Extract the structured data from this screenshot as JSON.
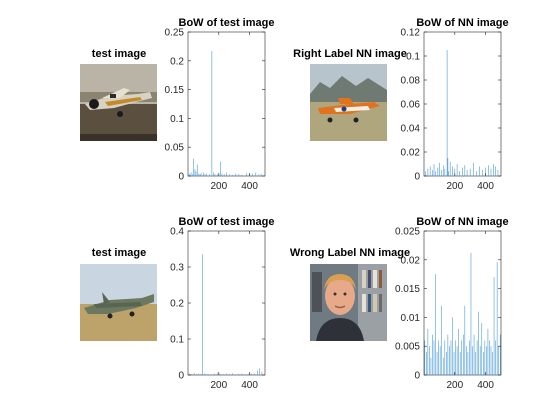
{
  "figure": {
    "rows": [
      {
        "test_image_title": "test image",
        "nn_image_title": "Right Label NN image",
        "nn_image_desc": "orange and white propeller trainer aircraft on airfield with mountains behind"
      },
      {
        "test_image_title": "test image",
        "nn_image_title": "Wrong Label NN image",
        "nn_image_desc": "portrait of a man in front of bookshelves"
      }
    ]
  },
  "chart_data": [
    {
      "type": "bar",
      "title": "BoW of test image",
      "xlabel": "",
      "ylabel": "",
      "xlim": [
        0,
        500
      ],
      "ylim": [
        0,
        0.25
      ],
      "yticks": [
        "0",
        "0.05",
        "0.1",
        "0.15",
        "0.2",
        "0.25"
      ],
      "xticks": [
        "200",
        "400"
      ],
      "grid": false,
      "x": [
        8,
        20,
        28,
        35,
        45,
        52,
        60,
        70,
        78,
        85,
        100,
        110,
        120,
        140,
        155,
        165,
        175,
        190,
        200,
        210,
        220,
        235,
        250,
        270,
        290,
        310,
        330,
        350,
        380,
        400,
        420,
        440,
        460,
        475
      ],
      "values": [
        0.004,
        0.006,
        0.003,
        0.03,
        0.012,
        0.008,
        0.02,
        0.004,
        0.003,
        0.005,
        0.006,
        0.003,
        0.004,
        0.003,
        0.217,
        0.006,
        0.004,
        0.003,
        0.005,
        0.025,
        0.004,
        0.003,
        0.006,
        0.003,
        0.002,
        0.004,
        0.003,
        0.002,
        0.005,
        0.003,
        0.004,
        0.006,
        0.003,
        0.004
      ]
    },
    {
      "type": "bar",
      "title": "BoW of NN image",
      "xlabel": "",
      "ylabel": "",
      "xlim": [
        0,
        500
      ],
      "ylim": [
        0,
        0.12
      ],
      "yticks": [
        "0",
        "0.02",
        "0.04",
        "0.06",
        "0.08",
        "0.1",
        "0.12"
      ],
      "xticks": [
        "200",
        "400"
      ],
      "grid": false,
      "x": [
        10,
        25,
        40,
        55,
        65,
        75,
        90,
        100,
        115,
        125,
        135,
        150,
        155,
        160,
        170,
        185,
        200,
        215,
        230,
        250,
        265,
        280,
        300,
        320,
        340,
        360,
        380,
        400,
        420,
        435,
        450,
        465,
        480
      ],
      "values": [
        0.004,
        0.006,
        0.008,
        0.005,
        0.01,
        0.004,
        0.007,
        0.011,
        0.005,
        0.009,
        0.006,
        0.105,
        0.015,
        0.004,
        0.012,
        0.008,
        0.006,
        0.01,
        0.004,
        0.007,
        0.009,
        0.005,
        0.006,
        0.011,
        0.004,
        0.008,
        0.005,
        0.007,
        0.009,
        0.006,
        0.01,
        0.008,
        0.005
      ]
    },
    {
      "type": "bar",
      "title": "BoW of test image",
      "xlabel": "",
      "ylabel": "",
      "xlim": [
        0,
        500
      ],
      "ylim": [
        0,
        0.4
      ],
      "yticks": [
        "0",
        "0.1",
        "0.2",
        "0.3",
        "0.4"
      ],
      "xticks": [
        "200",
        "400"
      ],
      "grid": false,
      "x": [
        10,
        25,
        40,
        55,
        70,
        85,
        95,
        110,
        130,
        150,
        170,
        190,
        210,
        230,
        250,
        270,
        290,
        310,
        330,
        350,
        370,
        390,
        410,
        430,
        450,
        465,
        480
      ],
      "values": [
        0.004,
        0.003,
        0.006,
        0.002,
        0.004,
        0.003,
        0.335,
        0.005,
        0.003,
        0.002,
        0.004,
        0.006,
        0.003,
        0.002,
        0.004,
        0.003,
        0.005,
        0.002,
        0.003,
        0.004,
        0.002,
        0.003,
        0.005,
        0.004,
        0.012,
        0.018,
        0.009
      ]
    },
    {
      "type": "bar",
      "title": "BoW of NN image",
      "xlabel": "",
      "ylabel": "",
      "xlim": [
        0,
        500
      ],
      "ylim": [
        0,
        0.025
      ],
      "yticks": [
        "0",
        "0.005",
        "0.01",
        "0.015",
        "0.02",
        "0.025"
      ],
      "xticks": [
        "200",
        "400"
      ],
      "grid": false,
      "x": [
        5,
        15,
        25,
        35,
        45,
        55,
        65,
        75,
        85,
        95,
        105,
        115,
        125,
        135,
        145,
        155,
        165,
        175,
        185,
        195,
        205,
        215,
        225,
        235,
        245,
        255,
        265,
        275,
        285,
        295,
        305,
        315,
        325,
        335,
        345,
        355,
        365,
        375,
        385,
        395,
        405,
        415,
        425,
        435,
        445,
        455,
        465,
        475,
        485,
        495
      ],
      "values": [
        0.006,
        0.004,
        0.008,
        0.005,
        0.003,
        0.007,
        0.006,
        0.0175,
        0.004,
        0.006,
        0.005,
        0.012,
        0.003,
        0.006,
        0.004,
        0.007,
        0.005,
        0.006,
        0.01,
        0.004,
        0.006,
        0.005,
        0.008,
        0.004,
        0.006,
        0.007,
        0.012,
        0.005,
        0.004,
        0.006,
        0.0212,
        0.005,
        0.007,
        0.004,
        0.006,
        0.011,
        0.005,
        0.009,
        0.004,
        0.006,
        0.005,
        0.008,
        0.006,
        0.005,
        0.004,
        0.017,
        0.006,
        0.0196,
        0.005,
        0.007
      ]
    }
  ]
}
